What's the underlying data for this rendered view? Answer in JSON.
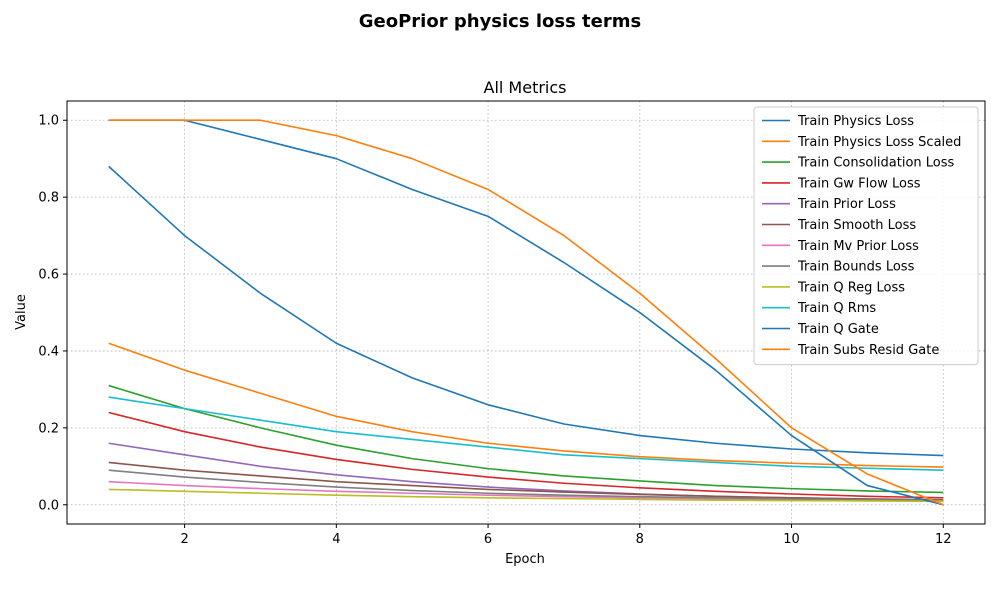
{
  "chart_data": {
    "type": "line",
    "suptitle": "GeoPrior physics loss terms",
    "title": "All Metrics",
    "xlabel": "Epoch",
    "ylabel": "Value",
    "xlim": [
      0.45,
      12.55
    ],
    "ylim": [
      -0.05,
      1.05
    ],
    "xticks": [
      2,
      4,
      6,
      8,
      10,
      12
    ],
    "yticks": [
      0.0,
      0.2,
      0.4,
      0.6,
      0.8,
      1.0
    ],
    "xtick_labels": [
      "2",
      "4",
      "6",
      "8",
      "10",
      "12"
    ],
    "ytick_labels": [
      "0.0",
      "0.2",
      "0.4",
      "0.6",
      "0.8",
      "1.0"
    ],
    "grid": true,
    "legend_position": "top-right",
    "x": [
      1,
      2,
      3,
      4,
      5,
      6,
      7,
      8,
      9,
      10,
      11,
      12
    ],
    "series": [
      {
        "name": "Train Physics Loss",
        "color": "#1f77b4",
        "values": [
          0.88,
          0.7,
          0.55,
          0.42,
          0.33,
          0.26,
          0.21,
          0.18,
          0.16,
          0.145,
          0.135,
          0.128
        ]
      },
      {
        "name": "Train Physics Loss Scaled",
        "color": "#ff7f0e",
        "values": [
          0.42,
          0.35,
          0.29,
          0.23,
          0.19,
          0.16,
          0.14,
          0.125,
          0.115,
          0.108,
          0.102,
          0.098
        ]
      },
      {
        "name": "Train Consolidation Loss",
        "color": "#2ca02c",
        "values": [
          0.31,
          0.25,
          0.2,
          0.155,
          0.12,
          0.094,
          0.075,
          0.062,
          0.05,
          0.042,
          0.036,
          0.032
        ]
      },
      {
        "name": "Train Gw Flow Loss",
        "color": "#d62728",
        "values": [
          0.24,
          0.19,
          0.15,
          0.118,
          0.092,
          0.072,
          0.056,
          0.044,
          0.035,
          0.028,
          0.022,
          0.018
        ]
      },
      {
        "name": "Train Prior Loss",
        "color": "#9467bd",
        "values": [
          0.16,
          0.13,
          0.1,
          0.078,
          0.06,
          0.046,
          0.036,
          0.028,
          0.022,
          0.018,
          0.015,
          0.012
        ]
      },
      {
        "name": "Train Smooth Loss",
        "color": "#8c564b",
        "values": [
          0.11,
          0.09,
          0.075,
          0.06,
          0.05,
          0.04,
          0.033,
          0.027,
          0.022,
          0.018,
          0.015,
          0.013
        ]
      },
      {
        "name": "Train Mv Prior Loss",
        "color": "#e377c2",
        "values": [
          0.06,
          0.05,
          0.042,
          0.035,
          0.03,
          0.025,
          0.021,
          0.018,
          0.015,
          0.013,
          0.011,
          0.01
        ]
      },
      {
        "name": "Train Bounds Loss",
        "color": "#7f7f7f",
        "values": [
          0.09,
          0.072,
          0.058,
          0.046,
          0.037,
          0.03,
          0.025,
          0.021,
          0.018,
          0.015,
          0.013,
          0.011
        ]
      },
      {
        "name": "Train Q Reg Loss",
        "color": "#bcbd22",
        "values": [
          0.04,
          0.035,
          0.03,
          0.025,
          0.021,
          0.018,
          0.016,
          0.014,
          0.012,
          0.011,
          0.01,
          0.009
        ]
      },
      {
        "name": "Train Q Rms",
        "color": "#17becf",
        "values": [
          0.28,
          0.25,
          0.22,
          0.19,
          0.17,
          0.15,
          0.13,
          0.12,
          0.11,
          0.1,
          0.095,
          0.09
        ]
      },
      {
        "name": "Train Q Gate",
        "color": "#1f77b4",
        "values": [
          1.0,
          1.0,
          0.95,
          0.9,
          0.82,
          0.75,
          0.63,
          0.5,
          0.35,
          0.18,
          0.05,
          0.0
        ]
      },
      {
        "name": "Train Subs Resid Gate",
        "color": "#ff7f0e",
        "values": [
          1.0,
          1.0,
          1.0,
          0.96,
          0.9,
          0.82,
          0.7,
          0.55,
          0.38,
          0.2,
          0.08,
          0.0
        ]
      }
    ]
  }
}
